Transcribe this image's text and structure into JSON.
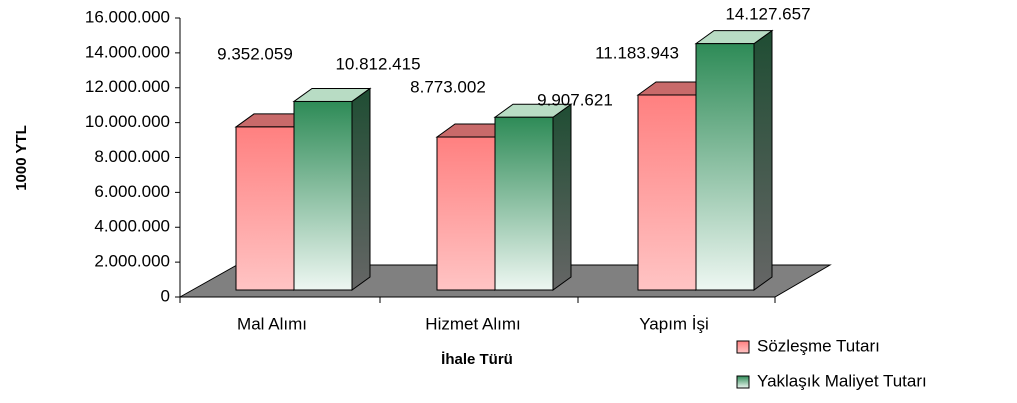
{
  "chart_data": {
    "type": "bar3d",
    "x_label": "İhale Türü",
    "y_label": "1000 YTL",
    "categories": [
      "Mal Alımı",
      "Hizmet Alımı",
      "Yapım İşi"
    ],
    "series": [
      {
        "name": "Sözleşme Tutarı",
        "color": "#ff8080",
        "values": [
          9352059,
          8773002,
          11183943
        ],
        "value_labels": [
          "9.352.059",
          "8.773.002",
          "11.183.943"
        ]
      },
      {
        "name": "Yaklaşık Maliyet Tutarı",
        "color": "#2e8b57",
        "values": [
          10812415,
          9907621,
          14127657
        ],
        "value_labels": [
          "10.812.415",
          "9.907.621",
          "14.127.657"
        ]
      }
    ],
    "ylim": [
      0,
      16000000
    ],
    "yticks": [
      0,
      {
        "value": 2000000,
        "label": "2.000.000"
      },
      {
        "value": 4000000,
        "label": "4.000.000"
      },
      {
        "value": 6000000,
        "label": "6.000.000"
      },
      {
        "value": 8000000,
        "label": "8.000.000"
      },
      {
        "value": 10000000,
        "label": "10.000.000"
      },
      {
        "value": 12000000,
        "label": "12.000.000"
      },
      {
        "value": 14000000,
        "label": "14.000.000"
      },
      {
        "value": 16000000,
        "label": "16.000.000"
      }
    ],
    "legend": "bottom-right"
  }
}
